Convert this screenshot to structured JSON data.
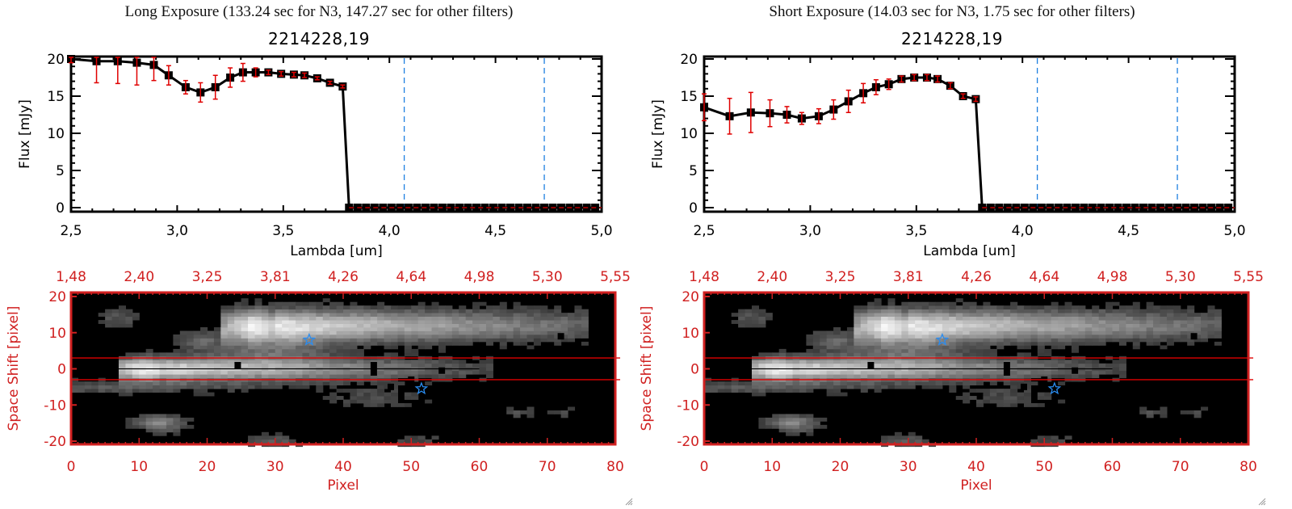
{
  "colors": {
    "spectrum_line": "#000000",
    "error_bar": "#e00000",
    "filter_line": "#1e7fe0",
    "zero_line": "#e00000",
    "image_axes": "#d02020",
    "extract_box": "#e00000",
    "star_marker": "#2a8cf0"
  },
  "chart_data": [
    {
      "id": "long",
      "type": "line",
      "panel_title": "Long Exposure (133.24 sec for N3, 147.27 sec for other filters)",
      "title": "2214228,19",
      "xlabel": "Lambda [um]",
      "ylabel": "Flux [mJy]",
      "xlim": [
        2.5,
        5.0
      ],
      "ylim": [
        0,
        20
      ],
      "xticks": [
        "2,5",
        "3,0",
        "3,5",
        "4,0",
        "4,5",
        "5,0"
      ],
      "xtick_values": [
        2.5,
        3.0,
        3.5,
        4.0,
        4.5,
        5.0
      ],
      "yticks": [
        "0",
        "5",
        "10",
        "15",
        "20"
      ],
      "ytick_values": [
        0,
        5,
        10,
        15,
        20
      ],
      "filter_lines_x": [
        4.07,
        4.73
      ],
      "zero_line_y": 0,
      "series": [
        {
          "name": "flux",
          "x": [
            2.5,
            2.62,
            2.72,
            2.81,
            2.89,
            2.96,
            3.04,
            3.11,
            3.18,
            3.25,
            3.31,
            3.37,
            3.43,
            3.49,
            3.55,
            3.6,
            3.66,
            3.72,
            3.78,
            3.81,
            3.85,
            3.89,
            3.93,
            3.97,
            4.01,
            4.05,
            4.09,
            4.13,
            4.17,
            4.21,
            4.25,
            4.29,
            4.33,
            4.37,
            4.41,
            4.45,
            4.49,
            4.53,
            4.57,
            4.61,
            4.65,
            4.69,
            4.73,
            4.77,
            4.81,
            4.85,
            4.89,
            4.93,
            4.97
          ],
          "y": [
            20.0,
            19.7,
            19.7,
            19.5,
            19.2,
            17.8,
            16.2,
            15.5,
            16.2,
            17.5,
            18.2,
            18.2,
            18.2,
            18.0,
            17.9,
            17.8,
            17.4,
            16.8,
            16.3,
            0,
            0,
            0,
            0,
            0,
            0,
            0,
            0,
            0,
            0,
            0,
            0,
            0,
            0,
            0,
            0,
            0,
            0,
            0,
            0,
            0,
            0,
            0,
            0,
            0,
            0,
            0,
            0,
            0,
            0
          ],
          "yerr": [
            0.5,
            2.9,
            3.0,
            3.0,
            2.1,
            1.3,
            0.9,
            1.3,
            1.6,
            1.3,
            1.2,
            0.6,
            0.3,
            0.3,
            0.3,
            0.3,
            0.2,
            0.2,
            0.2,
            0,
            0,
            0,
            0,
            0,
            0,
            0,
            0,
            0,
            0,
            0,
            0,
            0,
            0,
            0,
            0,
            0,
            0,
            0,
            0,
            0,
            0,
            0,
            0,
            0,
            0,
            0,
            0,
            0,
            0
          ]
        }
      ],
      "image": {
        "xlabel": "Pixel",
        "ylabel": "Space Shift [pixel]",
        "xlim": [
          0,
          80
        ],
        "ylim": [
          -20,
          20
        ],
        "xticks": [
          "0",
          "10",
          "20",
          "30",
          "40",
          "50",
          "60",
          "70",
          "80"
        ],
        "xtick_values": [
          0,
          10,
          20,
          30,
          40,
          50,
          60,
          70,
          80
        ],
        "top_ticks": [
          "1,48",
          "2,40",
          "3,25",
          "3,81",
          "4,26",
          "4,64",
          "4,98",
          "5,30",
          "5,55"
        ],
        "yticks": [
          "20",
          "10",
          "0",
          "-10",
          "-20"
        ],
        "ytick_values": [
          20,
          10,
          0,
          -10,
          -20
        ],
        "extraction_box": [
          -3,
          3
        ],
        "stars": [
          [
            35,
            8
          ],
          [
            51.5,
            -5.5
          ]
        ]
      }
    },
    {
      "id": "short",
      "type": "line",
      "panel_title": "Short Exposure (14.03 sec for N3, 1.75 sec for other filters)",
      "title": "2214228,19",
      "xlabel": "Lambda [um]",
      "ylabel": "Flux [mJy]",
      "xlim": [
        2.5,
        5.0
      ],
      "ylim": [
        0,
        20
      ],
      "xticks": [
        "2,5",
        "3,0",
        "3,5",
        "4,0",
        "4,5",
        "5,0"
      ],
      "xtick_values": [
        2.5,
        3.0,
        3.5,
        4.0,
        4.5,
        5.0
      ],
      "yticks": [
        "0",
        "5",
        "10",
        "15",
        "20"
      ],
      "ytick_values": [
        0,
        5,
        10,
        15,
        20
      ],
      "filter_lines_x": [
        4.07,
        4.73
      ],
      "zero_line_y": 0,
      "series": [
        {
          "name": "flux",
          "x": [
            2.5,
            2.62,
            2.72,
            2.81,
            2.89,
            2.96,
            3.04,
            3.11,
            3.18,
            3.25,
            3.31,
            3.37,
            3.43,
            3.49,
            3.55,
            3.6,
            3.66,
            3.72,
            3.78,
            3.81,
            3.85,
            3.89,
            3.93,
            3.97,
            4.01,
            4.05,
            4.09,
            4.13,
            4.17,
            4.21,
            4.25,
            4.29,
            4.33,
            4.37,
            4.41,
            4.45,
            4.49,
            4.53,
            4.57,
            4.61,
            4.65,
            4.69,
            4.73,
            4.77,
            4.81,
            4.85,
            4.89,
            4.93,
            4.97
          ],
          "y": [
            13.5,
            12.3,
            12.8,
            12.7,
            12.5,
            12.0,
            12.3,
            13.2,
            14.3,
            15.4,
            16.2,
            16.6,
            17.3,
            17.5,
            17.5,
            17.3,
            16.4,
            15.0,
            14.6,
            0,
            0,
            0,
            0,
            0,
            0,
            0,
            0,
            0,
            0,
            0,
            0,
            0,
            0,
            0,
            0,
            0,
            0,
            0,
            0,
            0,
            0,
            0,
            0,
            0,
            0,
            0,
            0,
            0,
            0
          ],
          "yerr": [
            1.8,
            2.4,
            2.7,
            1.8,
            1.1,
            0.8,
            1.0,
            1.3,
            1.5,
            1.3,
            1.0,
            0.7,
            0.4,
            0.4,
            0.4,
            0.4,
            0.4,
            0.3,
            0.3,
            0,
            0,
            0,
            0,
            0,
            0,
            0,
            0,
            0,
            0,
            0,
            0,
            0,
            0,
            0,
            0,
            0,
            0,
            0,
            0,
            0,
            0,
            0,
            0,
            0,
            0,
            0,
            0,
            0,
            0
          ]
        }
      ],
      "image": {
        "xlabel": "Pixel",
        "ylabel": "Space Shift [pixel]",
        "xlim": [
          0,
          80
        ],
        "ylim": [
          -20,
          20
        ],
        "xticks": [
          "0",
          "10",
          "20",
          "30",
          "40",
          "50",
          "60",
          "70",
          "80"
        ],
        "xtick_values": [
          0,
          10,
          20,
          30,
          40,
          50,
          60,
          70,
          80
        ],
        "top_ticks": [
          "1,48",
          "2,40",
          "3,25",
          "3,81",
          "4,26",
          "4,64",
          "4,98",
          "5,30",
          "5,55"
        ],
        "yticks": [
          "20",
          "10",
          "0",
          "-10",
          "-20"
        ],
        "ytick_values": [
          20,
          10,
          0,
          -10,
          -20
        ],
        "extraction_box": [
          -3,
          3
        ],
        "stars": [
          [
            35,
            8
          ],
          [
            51.5,
            -5.5
          ]
        ]
      }
    }
  ]
}
